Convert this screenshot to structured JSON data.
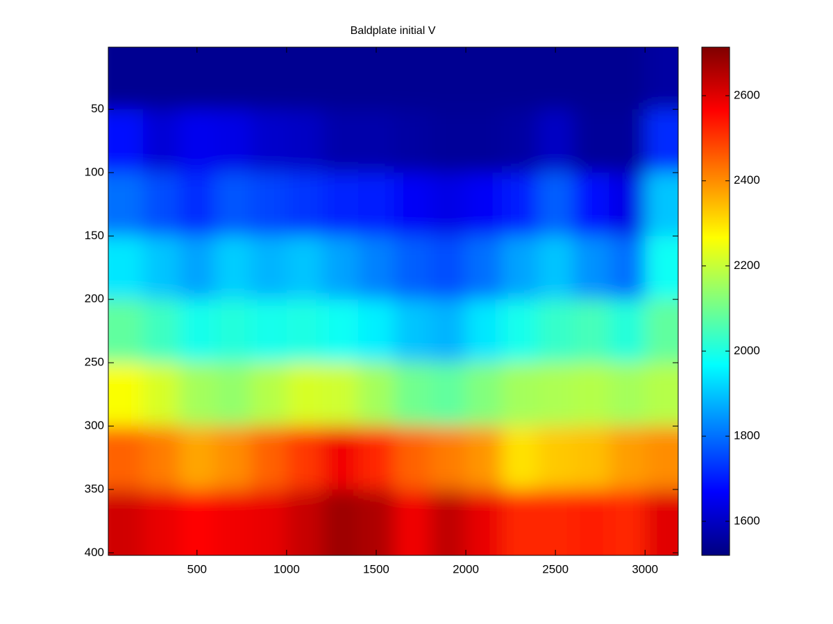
{
  "chart_data": {
    "type": "heatmap",
    "title": "Baldplate initial V",
    "colormap": "jet",
    "x": [
      100,
      300,
      500,
      700,
      900,
      1100,
      1300,
      1500,
      1700,
      1900,
      2100,
      2300,
      2500,
      2700,
      2900,
      3100
    ],
    "y": [
      25,
      75,
      125,
      175,
      225,
      275,
      325,
      375
    ],
    "values": [
      [
        1540,
        1540,
        1540,
        1540,
        1540,
        1540,
        1540,
        1540,
        1540,
        1540,
        1540,
        1540,
        1540,
        1540,
        1540,
        1560
      ],
      [
        1680,
        1620,
        1650,
        1640,
        1610,
        1600,
        1570,
        1570,
        1560,
        1550,
        1550,
        1560,
        1600,
        1550,
        1550,
        1720
      ],
      [
        1800,
        1760,
        1720,
        1770,
        1750,
        1730,
        1710,
        1700,
        1660,
        1640,
        1660,
        1700,
        1780,
        1680,
        1640,
        1900
      ],
      [
        1940,
        1900,
        1860,
        1910,
        1880,
        1900,
        1860,
        1820,
        1780,
        1760,
        1800,
        1860,
        1900,
        1840,
        1800,
        1980
      ],
      [
        2080,
        2040,
        1990,
        2010,
        1990,
        2000,
        1980,
        1950,
        1900,
        1880,
        1940,
        1990,
        2030,
        2050,
        2010,
        2080
      ],
      [
        2260,
        2220,
        2160,
        2140,
        2180,
        2220,
        2210,
        2160,
        2100,
        2080,
        2120,
        2160,
        2170,
        2180,
        2160,
        2180
      ],
      [
        2450,
        2420,
        2370,
        2400,
        2450,
        2500,
        2580,
        2520,
        2450,
        2420,
        2390,
        2300,
        2330,
        2340,
        2380,
        2400
      ],
      [
        2620,
        2590,
        2560,
        2580,
        2590,
        2630,
        2680,
        2660,
        2580,
        2640,
        2590,
        2520,
        2520,
        2530,
        2520,
        2600
      ]
    ],
    "xlim": [
      5,
      3185
    ],
    "ylim": [
      1,
      402
    ],
    "y_reversed": true,
    "xticks": [
      500,
      1000,
      1500,
      2000,
      2500,
      3000
    ],
    "yticks": [
      50,
      100,
      150,
      200,
      250,
      300,
      350,
      400
    ],
    "clim": [
      1520,
      2714
    ],
    "colorbar_ticks": [
      1600,
      1800,
      2000,
      2200,
      2400,
      2600
    ]
  }
}
